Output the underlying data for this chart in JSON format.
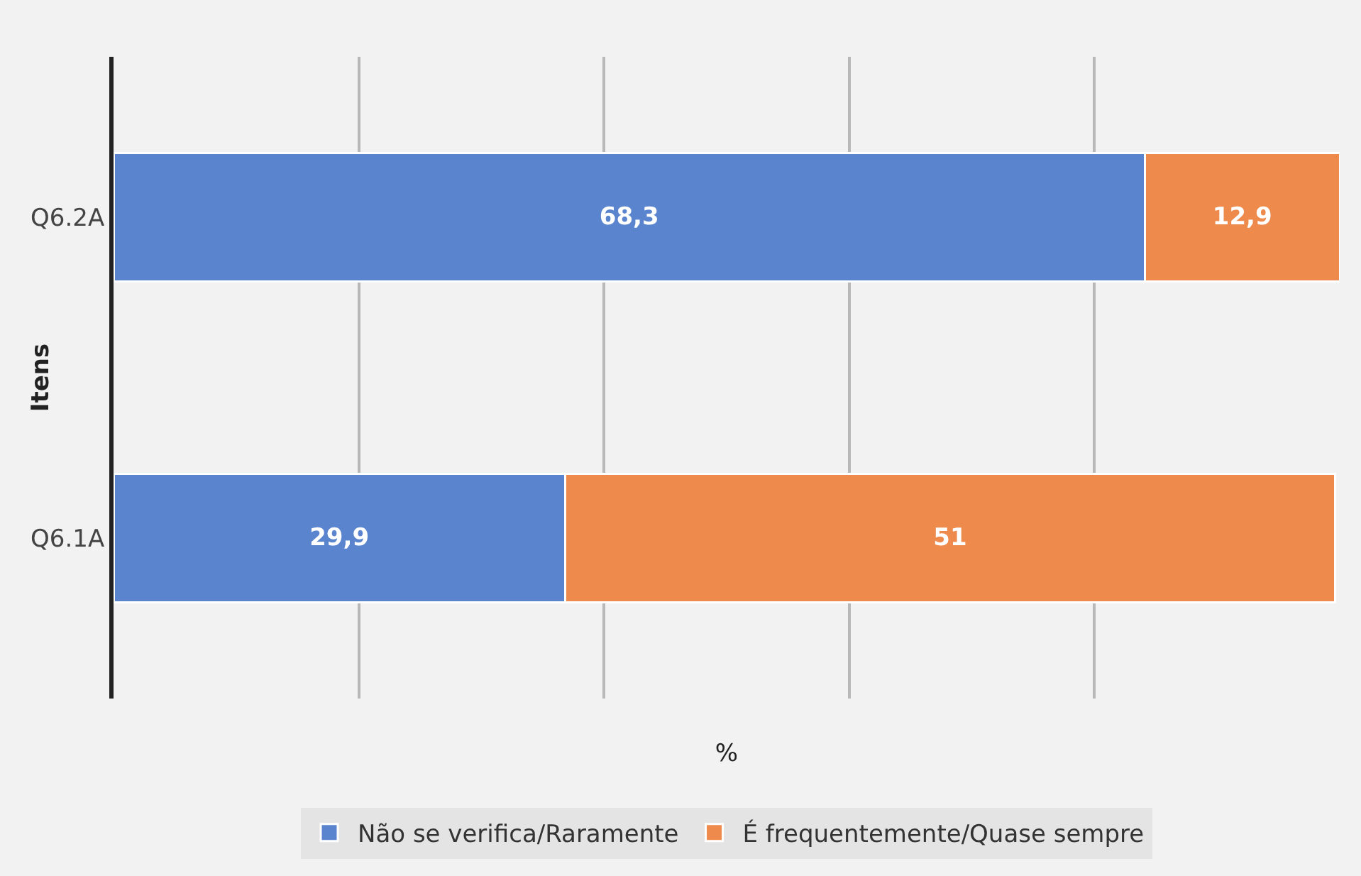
{
  "chart_data": {
    "type": "bar",
    "orientation": "horizontal",
    "stacked": true,
    "xlabel": "%",
    "ylabel": "Itens",
    "categories": [
      "Q6.2A",
      "Q6.1A"
    ],
    "series": [
      {
        "name": "Não se verifica/Raramente",
        "color": "#5b84cf",
        "values": [
          68.3,
          29.9
        ],
        "value_labels": [
          "68,3",
          "29,9"
        ]
      },
      {
        "name": "É frequentemente/Quase sempre",
        "color": "#ed8a4c",
        "values": [
          12.9,
          51
        ],
        "value_labels": [
          "12,9",
          "51"
        ]
      }
    ],
    "xlim": [
      0,
      81.2
    ],
    "grid": "x",
    "legend": "bottom",
    "tick_labels": "y"
  }
}
